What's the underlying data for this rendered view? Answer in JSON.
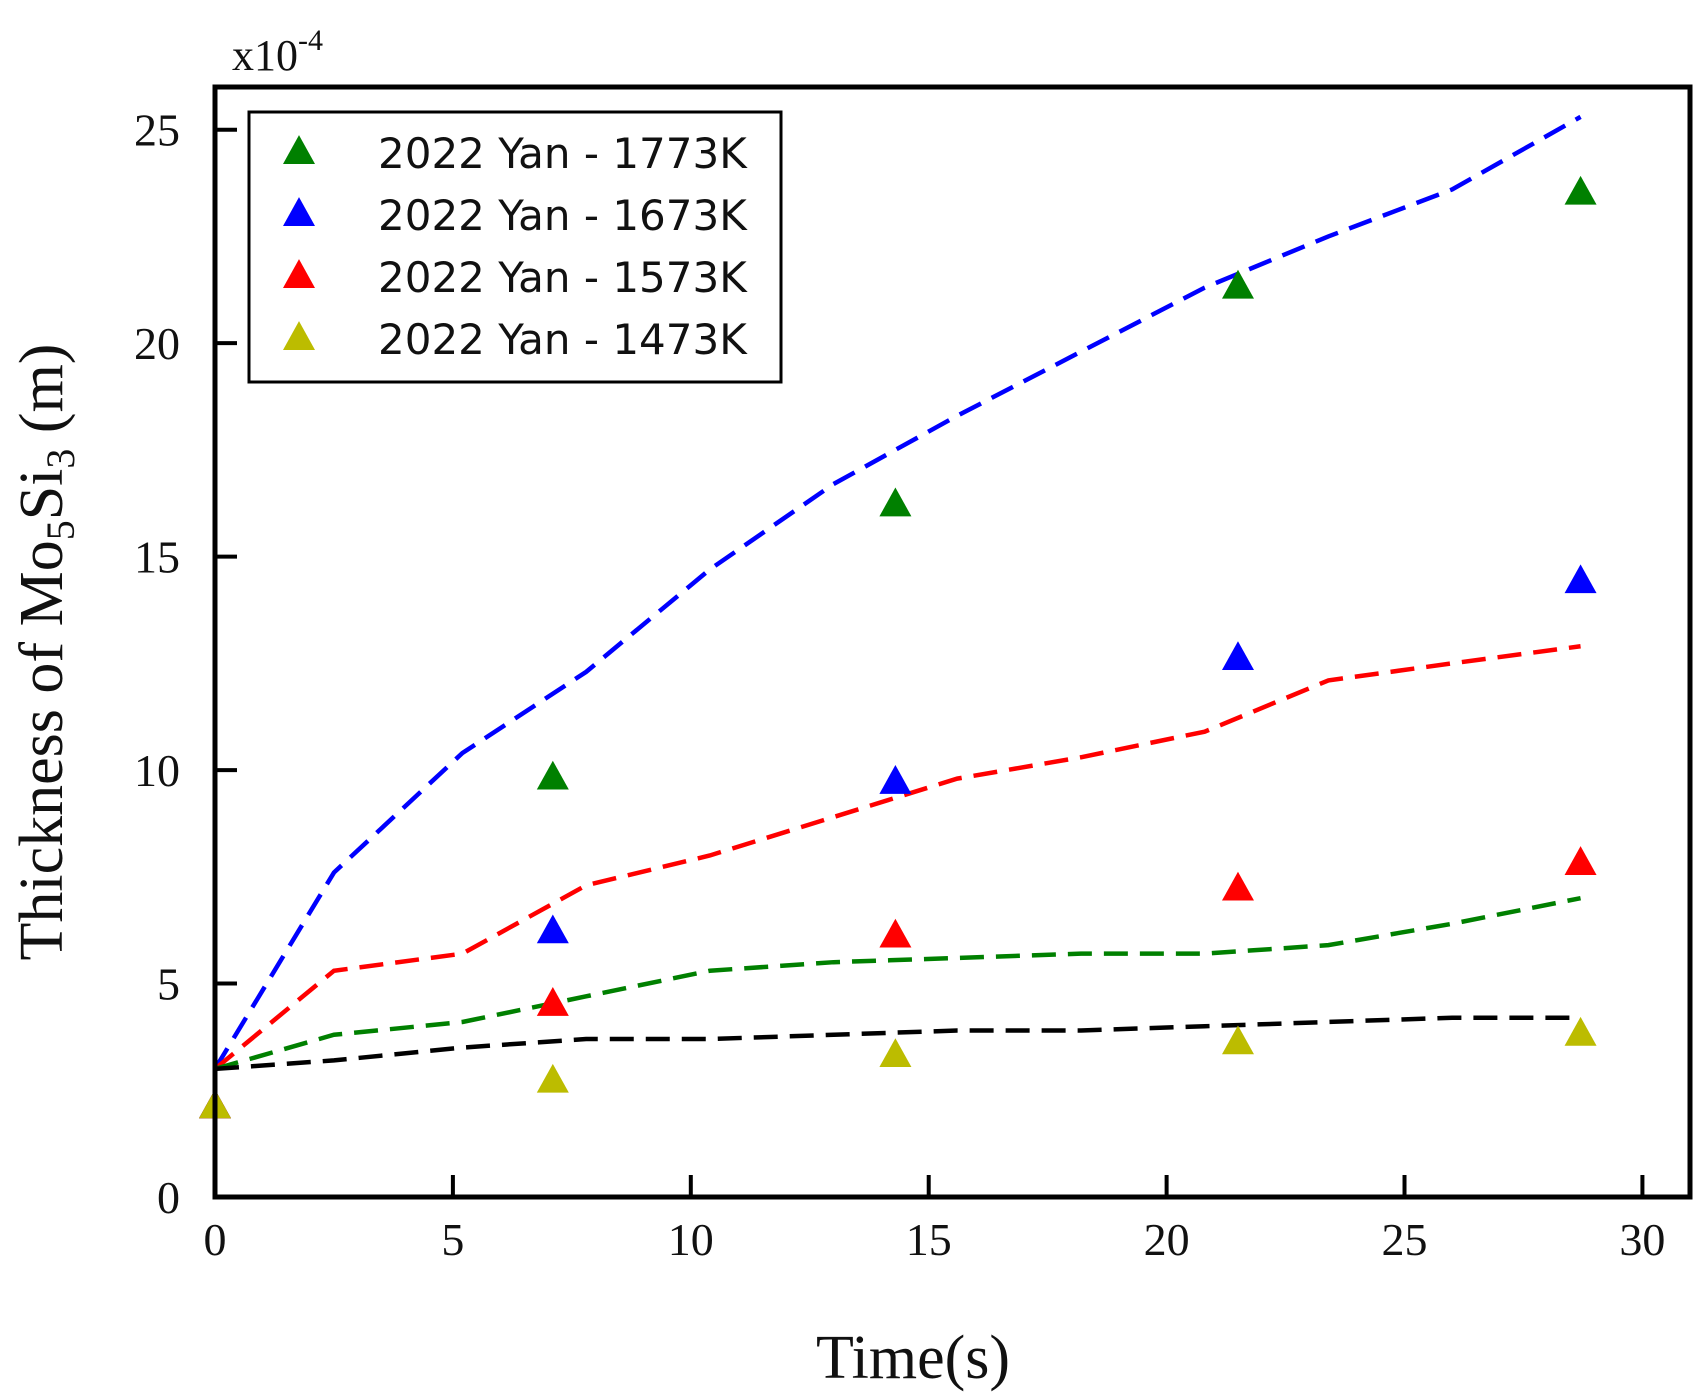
{
  "chart_data": {
    "type": "scatter",
    "xlabel": "Time(s)",
    "ylabel": {
      "prefix": "Thickness of Mo",
      "sub1": "5",
      "mid": "Si",
      "sub2": "3",
      "suffix": " (m)"
    },
    "y_multiplier": {
      "base": "x10",
      "exp": "-4"
    },
    "xlim": [
      0,
      31
    ],
    "ylim": [
      0,
      26
    ],
    "x_ticks": [
      0,
      5,
      10,
      15,
      20,
      25,
      30
    ],
    "y_ticks": [
      0,
      5,
      10,
      15,
      20,
      25
    ],
    "grid": false,
    "legend_position": "top-left",
    "series": [
      {
        "name": "2022 Yan - 1773K",
        "color": "#008000",
        "marker": "triangle",
        "x": [
          0,
          7.1,
          14.3,
          21.5,
          28.7
        ],
        "y": [
          2.1,
          9.8,
          16.2,
          21.3,
          23.5
        ]
      },
      {
        "name": "2022 Yan - 1673K",
        "color": "#0000ff",
        "marker": "triangle",
        "x": [
          0,
          7.1,
          14.3,
          21.5,
          28.7
        ],
        "y": [
          2.1,
          6.2,
          9.7,
          12.6,
          14.4
        ]
      },
      {
        "name": "2022 Yan - 1573K",
        "color": "#ff0000",
        "marker": "triangle",
        "x": [
          0,
          7.1,
          14.3,
          21.5,
          28.7
        ],
        "y": [
          2.1,
          4.5,
          6.1,
          7.2,
          7.8
        ]
      },
      {
        "name": "2022 Yan - 1473K",
        "color": "#bcbc00",
        "marker": "triangle",
        "x": [
          0,
          7.1,
          14.3,
          21.5,
          28.7
        ],
        "y": [
          2.1,
          2.7,
          3.3,
          3.6,
          3.8
        ]
      }
    ],
    "model_lines": [
      {
        "color": "#0000ff",
        "style": "dashed",
        "x": [
          0,
          2.5,
          5.2,
          7.8,
          10.4,
          13,
          15.6,
          18.2,
          20.8,
          23.4,
          26,
          28.7
        ],
        "y": [
          3.0,
          7.6,
          10.4,
          12.3,
          14.7,
          16.7,
          18.3,
          19.8,
          21.3,
          22.5,
          23.6,
          25.3
        ]
      },
      {
        "color": "#ff0000",
        "style": "dashed",
        "x": [
          0,
          2.5,
          5.2,
          7.8,
          10.4,
          13,
          15.6,
          18.2,
          20.8,
          23.4,
          26,
          28.7
        ],
        "y": [
          3.0,
          5.3,
          5.7,
          7.3,
          8.0,
          8.9,
          9.8,
          10.3,
          10.9,
          12.1,
          12.5,
          12.9
        ]
      },
      {
        "color": "#008000",
        "style": "dashed",
        "x": [
          0,
          2.5,
          5.2,
          7.8,
          10.4,
          13,
          15.6,
          18.2,
          20.8,
          23.4,
          26,
          28.7
        ],
        "y": [
          3.0,
          3.8,
          4.1,
          4.7,
          5.3,
          5.5,
          5.6,
          5.7,
          5.7,
          5.9,
          6.4,
          7.0
        ]
      },
      {
        "color": "#000000",
        "style": "dashed",
        "x": [
          0,
          2.5,
          5.2,
          7.8,
          10.4,
          13,
          15.6,
          18.2,
          20.8,
          23.4,
          26,
          28.7
        ],
        "y": [
          3.0,
          3.2,
          3.5,
          3.7,
          3.7,
          3.8,
          3.9,
          3.9,
          4.0,
          4.1,
          4.2,
          4.2
        ]
      }
    ]
  }
}
